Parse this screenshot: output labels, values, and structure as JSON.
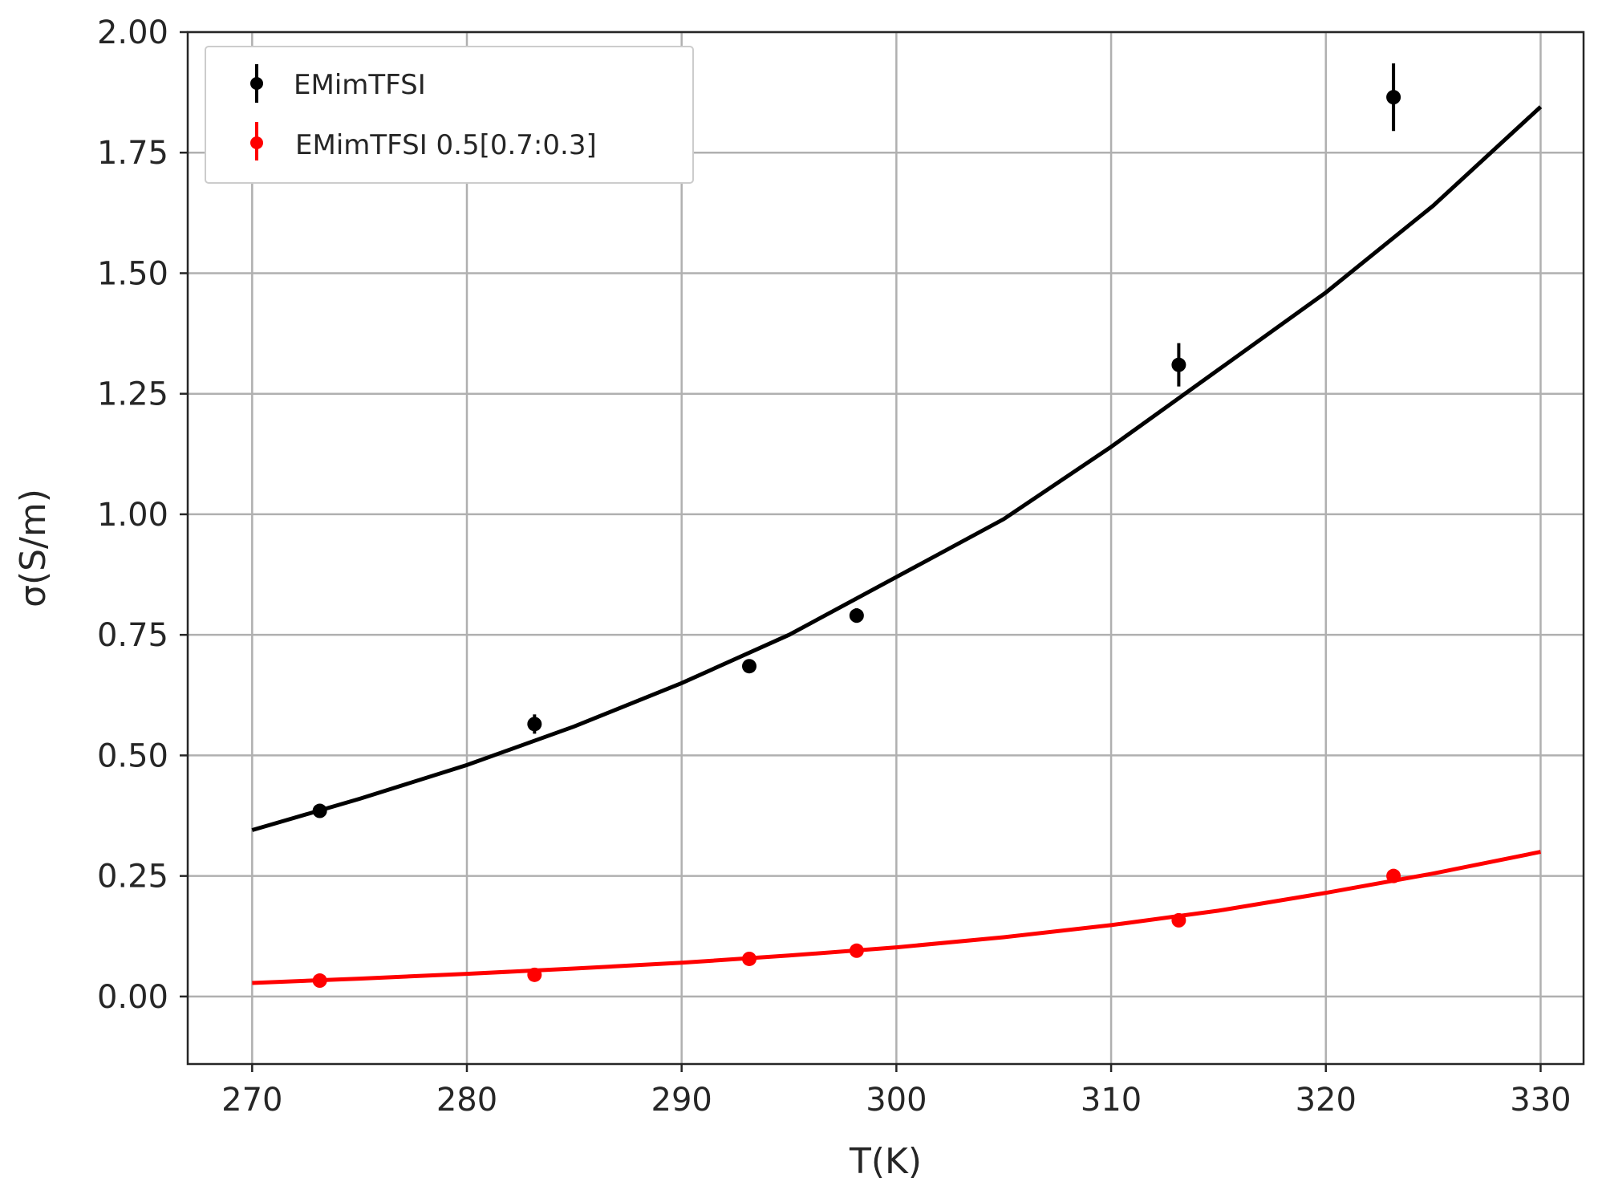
{
  "chart_data": {
    "type": "scatter",
    "xlabel": "T(K)",
    "ylabel": "σ(S/m)",
    "xlim": [
      267,
      332
    ],
    "ylim": [
      -0.14,
      2.0
    ],
    "xticks": [
      270,
      280,
      290,
      300,
      310,
      320,
      330
    ],
    "yticks": [
      0.0,
      0.25,
      0.5,
      0.75,
      1.0,
      1.25,
      1.5,
      1.75,
      2.0
    ],
    "x_tick_labels": [
      "270",
      "280",
      "290",
      "300",
      "310",
      "320",
      "330"
    ],
    "y_tick_labels": [
      "0.00",
      "0.25",
      "0.50",
      "0.75",
      "1.00",
      "1.25",
      "1.50",
      "1.75",
      "2.00"
    ],
    "grid": true,
    "legend_position": "top-left",
    "series": [
      {
        "name": "EMimTFSI",
        "color": "#000000",
        "points": [
          {
            "x": 273.15,
            "y": 0.385,
            "err": 0.012
          },
          {
            "x": 283.15,
            "y": 0.565,
            "err": 0.02
          },
          {
            "x": 293.15,
            "y": 0.685,
            "err": 0.012
          },
          {
            "x": 298.15,
            "y": 0.79,
            "err": 0.015
          },
          {
            "x": 313.15,
            "y": 1.31,
            "err": 0.045
          },
          {
            "x": 323.15,
            "y": 1.865,
            "err": 0.07
          }
        ],
        "fit": {
          "x": [
            270,
            275,
            280,
            285,
            290,
            295,
            300,
            305,
            310,
            315,
            320,
            325,
            330
          ],
          "y": [
            0.345,
            0.41,
            0.48,
            0.56,
            0.65,
            0.75,
            0.87,
            0.99,
            1.14,
            1.3,
            1.46,
            1.64,
            1.845
          ]
        }
      },
      {
        "name": "EMimTFSI 0.5[0.7:0.3]",
        "color": "#ff0000",
        "points": [
          {
            "x": 273.15,
            "y": 0.033,
            "err": 0.006
          },
          {
            "x": 283.15,
            "y": 0.045,
            "err": 0.008
          },
          {
            "x": 293.15,
            "y": 0.078,
            "err": 0.005
          },
          {
            "x": 298.15,
            "y": 0.095,
            "err": 0.005
          },
          {
            "x": 313.15,
            "y": 0.158,
            "err": 0.008
          },
          {
            "x": 323.15,
            "y": 0.25,
            "err": 0.008
          }
        ],
        "fit": {
          "x": [
            270,
            275,
            280,
            285,
            290,
            295,
            300,
            305,
            310,
            315,
            320,
            325,
            330
          ],
          "y": [
            0.028,
            0.037,
            0.047,
            0.058,
            0.07,
            0.085,
            0.102,
            0.123,
            0.148,
            0.178,
            0.215,
            0.255,
            0.3
          ]
        }
      }
    ]
  }
}
